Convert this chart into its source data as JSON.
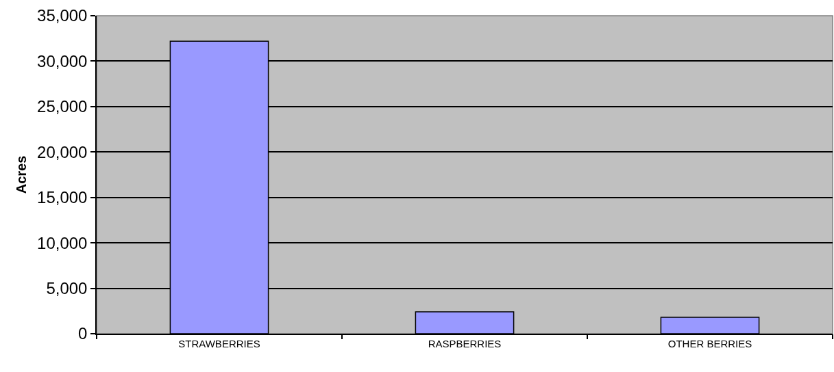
{
  "chart_data": {
    "type": "bar",
    "ylabel": "Acres",
    "categories": [
      "STRAWBERRIES",
      "RASPBERRIES",
      "OTHER BERRIES"
    ],
    "values": [
      32200,
      2400,
      1800
    ],
    "color": "#9999ff",
    "ylim": [
      0,
      35000
    ],
    "yticks": [
      0,
      {
        "value": 5000,
        "label": "5,000"
      },
      {
        "value": 10000,
        "label": "10,000"
      },
      {
        "value": 15000,
        "label": "15,000"
      },
      {
        "value": 20000,
        "label": "20,000"
      },
      {
        "value": 25000,
        "label": "25,000"
      },
      {
        "value": 30000,
        "label": "30,000"
      },
      {
        "value": 35000,
        "label": "35,000"
      }
    ],
    "grid": "y"
  }
}
